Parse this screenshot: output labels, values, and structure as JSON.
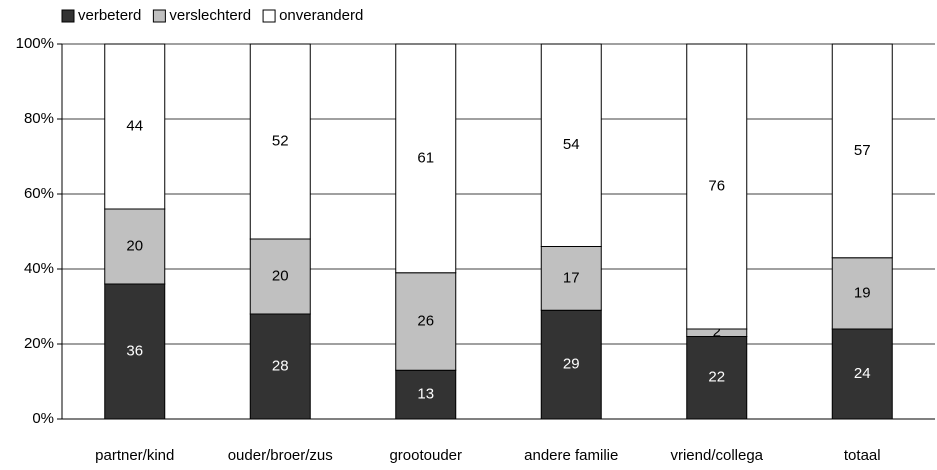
{
  "chart_data": {
    "type": "stacked_bar",
    "categories": [
      "partner/kind",
      "ouder/broer/zus",
      "grootouder",
      "andere familie",
      "vriend/collega",
      "totaal"
    ],
    "series": [
      {
        "name": "verbeterd",
        "color": "#333333",
        "values": [
          36,
          28,
          13,
          29,
          22,
          24
        ]
      },
      {
        "name": "verslechterd",
        "color": "#c0c0c0",
        "values": [
          20,
          20,
          26,
          17,
          2,
          19
        ]
      },
      {
        "name": "onveranderd",
        "color": "#ffffff",
        "values": [
          44,
          52,
          61,
          54,
          76,
          57
        ]
      }
    ],
    "ylim": [
      0,
      100
    ],
    "yticks": [
      {
        "value": 0,
        "label": "0%"
      },
      {
        "value": 20,
        "label": "20%"
      },
      {
        "value": 40,
        "label": "40%"
      },
      {
        "value": 60,
        "label": "60%"
      },
      {
        "value": 80,
        "label": "80%"
      },
      {
        "value": 100,
        "label": "100%"
      }
    ],
    "grid": true,
    "legend": "top-left"
  }
}
